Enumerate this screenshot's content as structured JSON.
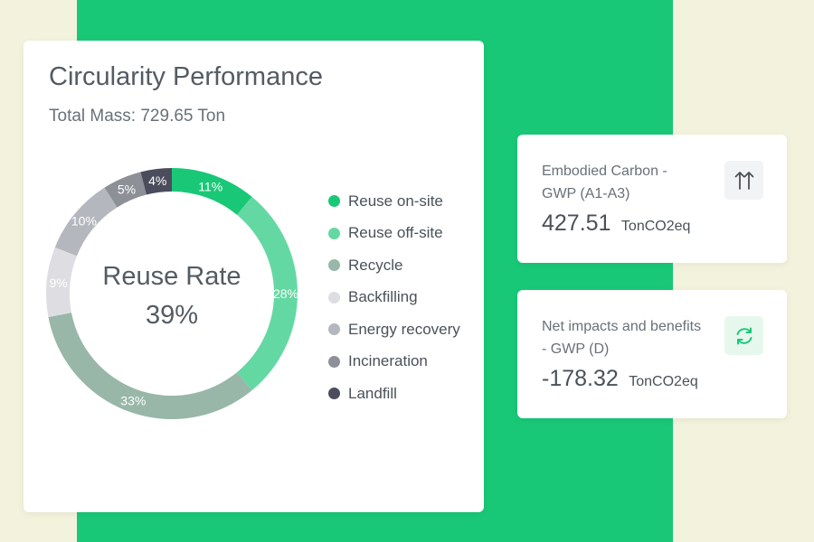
{
  "background": {
    "page_color": "#f3f3dd",
    "band_color": "#19c877"
  },
  "main_card": {
    "title": "Circularity Performance",
    "subtitle": "Total Mass: 729.65 Ton",
    "center_label_line1": "Reuse Rate",
    "center_label_line2": "39%"
  },
  "legend": [
    {
      "label": "Reuse on-site",
      "color": "#19c877"
    },
    {
      "label": "Reuse off-site",
      "color": "#64d8a3"
    },
    {
      "label": "Recycle",
      "color": "#98b7a9"
    },
    {
      "label": "Backfilling",
      "color": "#dedee2"
    },
    {
      "label": "Energy recovery",
      "color": "#b4b7bd"
    },
    {
      "label": "Incineration",
      "color": "#8d9097"
    },
    {
      "label": "Landfill",
      "color": "#4b4d5c"
    }
  ],
  "chart_data": {
    "type": "pie",
    "title": "Circularity Performance",
    "subtitle": "Total Mass: 729.65 Ton",
    "categories": [
      "Reuse on-site",
      "Reuse off-site",
      "Recycle",
      "Backfilling",
      "Energy recovery",
      "Incineration",
      "Landfill"
    ],
    "values": [
      11,
      28,
      33,
      9,
      10,
      5,
      4
    ],
    "data_labels": [
      "11%",
      "28%",
      "33%",
      "9%",
      "10%",
      "5%",
      "4%"
    ],
    "colors": [
      "#19c877",
      "#64d8a3",
      "#98b7a9",
      "#dedee2",
      "#b4b7bd",
      "#8d9097",
      "#4b4d5c"
    ],
    "legend_placement": "right",
    "center_text": [
      "Reuse Rate",
      "39%"
    ]
  },
  "metrics": [
    {
      "label": "Embodied Carbon - GWP (A1-A3)",
      "value": "427.51",
      "unit": "TonCO2eq",
      "icon": "up-arrows-icon",
      "icon_color": "#4b5158"
    },
    {
      "label": "Net impacts and benefits - GWP (D)",
      "value": "-178.32",
      "unit": "TonCO2eq",
      "icon": "refresh-icon",
      "icon_color": "#19c877"
    }
  ]
}
